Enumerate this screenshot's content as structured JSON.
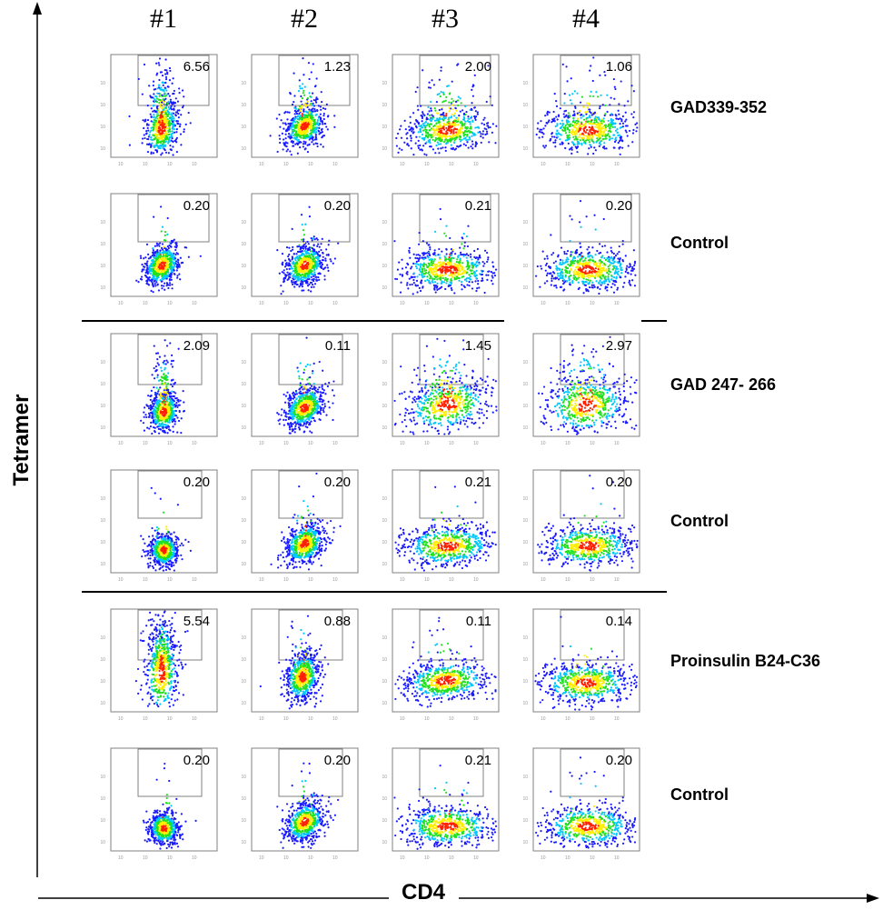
{
  "figure": {
    "x_axis_label": "CD4",
    "y_axis_label": "Tetramer"
  },
  "chart_data": {
    "type": "scatter",
    "description_of_panels": "flow cytometry density plots, 6 rows x 4 columns, gate percentage printed in each panel",
    "columns": [
      "#1",
      "#2",
      "#3",
      "#4"
    ],
    "rows": [
      {
        "label": "GAD339-352",
        "values": [
          "6.56",
          "1.23",
          "2.00",
          "1.06"
        ]
      },
      {
        "label": "Control",
        "values": [
          "0.20",
          "0.20",
          "0.21",
          "0.20"
        ]
      },
      {
        "label": "GAD 247- 266",
        "values": [
          "2.09",
          "0.11",
          "1.45",
          "2.97"
        ]
      },
      {
        "label": "Control",
        "values": [
          "0.20",
          "0.20",
          "0.21",
          "0.20"
        ]
      },
      {
        "label": "Proinsulin B24-C36",
        "values": [
          "5.54",
          "0.88",
          "0.11",
          "0.14"
        ]
      },
      {
        "label": "Control",
        "values": [
          "0.20",
          "0.20",
          "0.21",
          "0.20"
        ]
      }
    ],
    "density_colors": [
      "#1a1aff",
      "#00c8ff",
      "#20e020",
      "#ffee00",
      "#ff2000"
    ],
    "xlabel": "CD4",
    "ylabel": "Tetramer"
  }
}
